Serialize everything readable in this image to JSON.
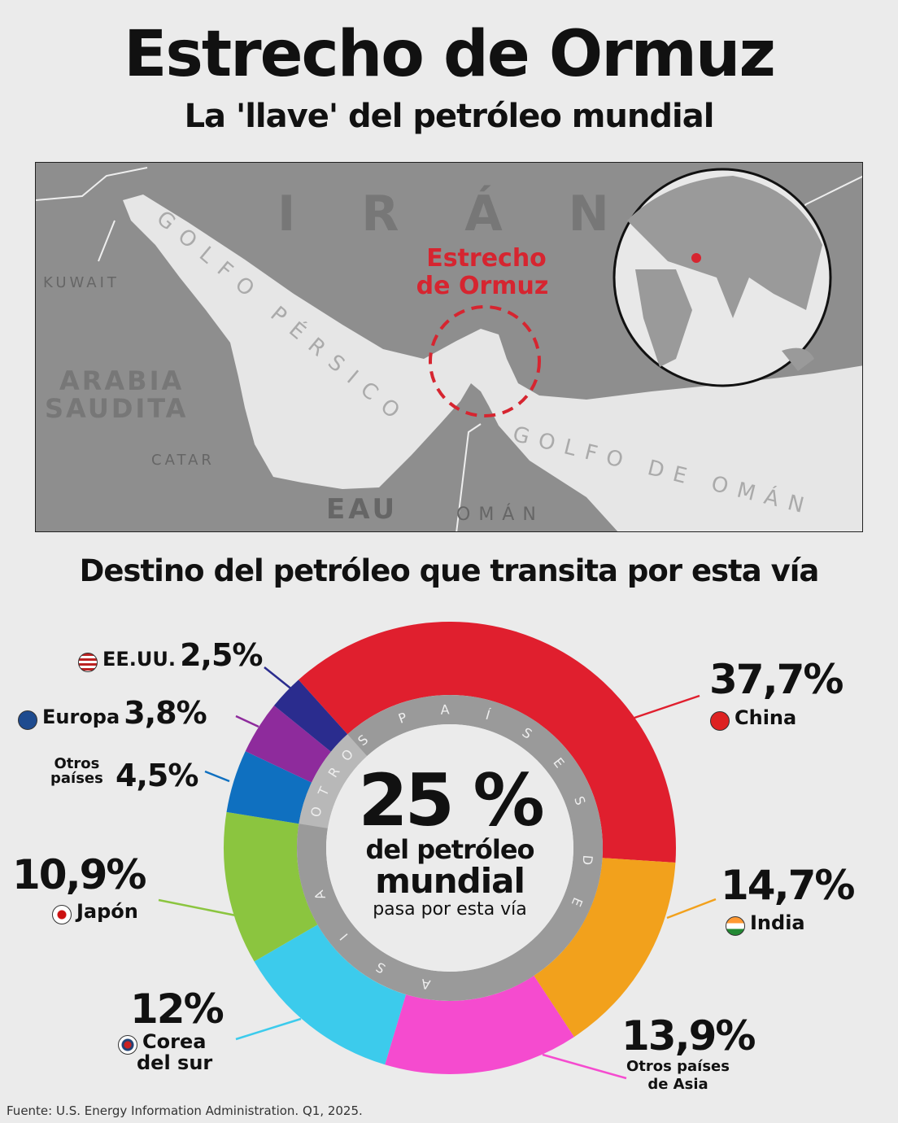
{
  "title": "Estrecho de Ormuz",
  "subtitle": "La 'llave' del petróleo mundial",
  "map": {
    "iran": "I R Á N",
    "strait": [
      "Estrecho",
      "de Ormuz"
    ],
    "kuwait": "KUWAIT",
    "saudi": [
      "ARABIA",
      "SAUDITA"
    ],
    "qatar": "CATAR",
    "uae": "EAU",
    "oman": "OMÁN",
    "gulf_persian": "GOLFO PÉRSICO",
    "gulf_oman": "GOLFO DE OMÁN",
    "accent": "#d62530"
  },
  "section_title": "Destino del petróleo que transita por esta vía",
  "center": {
    "big": "25 %",
    "line1": "del petróleo",
    "line2": "mundial",
    "line3": "pasa por esta vía",
    "ring_asia": "ASIA DE PAÍSES",
    "ring_otros": "OTROS"
  },
  "chart_data": {
    "type": "pie",
    "donut": true,
    "categories": [
      "China",
      "India",
      "Otros países de Asia",
      "Corea del sur",
      "Japón",
      "Otros países",
      "Europa",
      "EE.UU."
    ],
    "values": [
      37.7,
      14.7,
      13.9,
      12,
      10.9,
      4.5,
      3.8,
      2.5
    ],
    "labels": [
      "37,7%",
      "14,7%",
      "13,9%",
      "12%",
      "10,9%",
      "4,5%",
      "3,8%",
      "2,5%"
    ],
    "colors": [
      "#e01f2e",
      "#f2a11c",
      "#f54bcf",
      "#3ccbec",
      "#8bc53f",
      "#0f70c0",
      "#8e2b9c",
      "#2a2c8e"
    ],
    "groups": [
      {
        "name": "OTROS PAÍSES",
        "members": [
          "Otros países",
          "Europa",
          "EE.UU."
        ]
      },
      {
        "name": "ASIA",
        "members": [
          "China",
          "India",
          "Otros países de Asia",
          "Corea del sur",
          "Japón"
        ]
      }
    ]
  },
  "legend": {
    "otros_paises": [
      "Otros",
      "países"
    ],
    "corea": [
      "Corea",
      "del sur"
    ],
    "otros_asia": [
      "Otros países",
      "de Asia"
    ]
  },
  "source": "Fuente: U.S. Energy Information Administration. Q1, 2025."
}
